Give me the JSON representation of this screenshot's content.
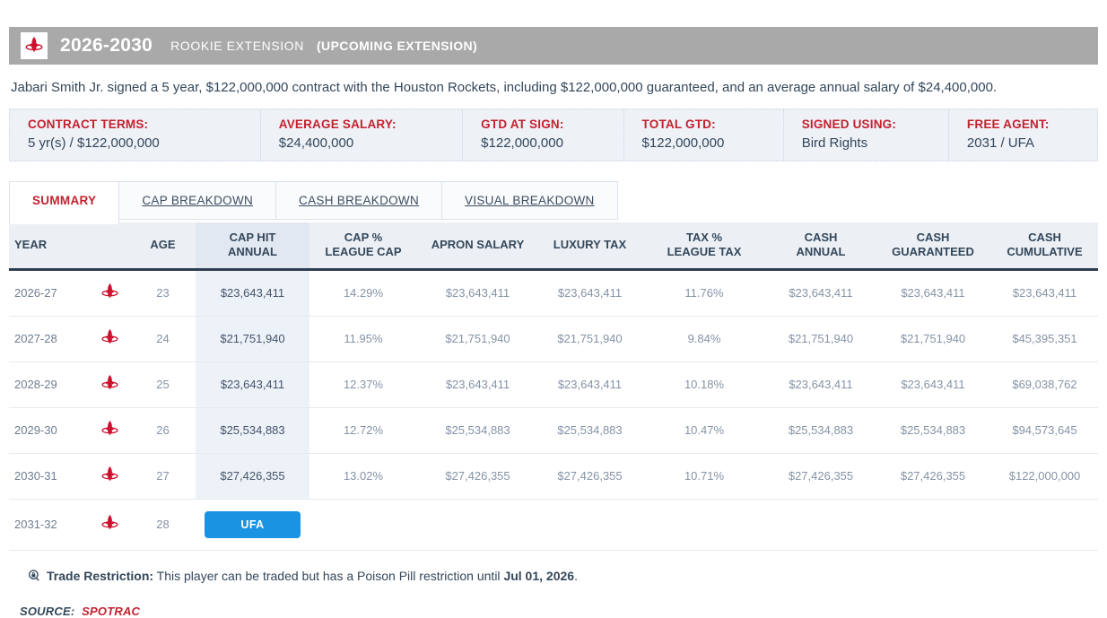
{
  "header": {
    "years": "2026-2030",
    "contract_type": "ROOKIE EXTENSION",
    "status": "(UPCOMING EXTENSION)",
    "team_logo_icon": "rockets-logo-icon"
  },
  "summary_sentence": "Jabari Smith Jr. signed a 5 year, $122,000,000 contract with the Houston Rockets, including $122,000,000 guaranteed, and an average annual salary of $24,400,000.",
  "terms": [
    {
      "label": "CONTRACT TERMS:",
      "value": "5 yr(s) / $122,000,000"
    },
    {
      "label": "AVERAGE SALARY:",
      "value": "$24,400,000"
    },
    {
      "label": "GTD AT SIGN:",
      "value": "$122,000,000"
    },
    {
      "label": "TOTAL GTD:",
      "value": "$122,000,000"
    },
    {
      "label": "SIGNED USING:",
      "value": "Bird Rights"
    },
    {
      "label": "FREE AGENT:",
      "value": "2031 / UFA"
    }
  ],
  "tabs": [
    {
      "label": "SUMMARY",
      "active": true
    },
    {
      "label": "CAP BREAKDOWN",
      "active": false
    },
    {
      "label": "CASH BREAKDOWN",
      "active": false
    },
    {
      "label": "VISUAL BREAKDOWN",
      "active": false
    }
  ],
  "table": {
    "columns": [
      "YEAR",
      "",
      "AGE",
      "CAP HIT\nANNUAL",
      "CAP %\nLEAGUE CAP",
      "APRON SALARY",
      "LUXURY TAX",
      "TAX %\nLEAGUE TAX",
      "CASH\nANNUAL",
      "CASH\nGUARANTEED",
      "CASH\nCUMULATIVE"
    ],
    "ufa_label": "UFA",
    "rows": [
      {
        "year": "2026-27",
        "age": "23",
        "cap_hit": "$23,643,411",
        "cap_pct": "14.29%",
        "apron": "$23,643,411",
        "luxury": "$23,643,411",
        "tax_pct": "11.76%",
        "cash_annual": "$23,643,411",
        "cash_gtd": "$23,643,411",
        "cash_cum": "$23,643,411"
      },
      {
        "year": "2027-28",
        "age": "24",
        "cap_hit": "$21,751,940",
        "cap_pct": "11.95%",
        "apron": "$21,751,940",
        "luxury": "$21,751,940",
        "tax_pct": "9.84%",
        "cash_annual": "$21,751,940",
        "cash_gtd": "$21,751,940",
        "cash_cum": "$45,395,351"
      },
      {
        "year": "2028-29",
        "age": "25",
        "cap_hit": "$23,643,411",
        "cap_pct": "12.37%",
        "apron": "$23,643,411",
        "luxury": "$23,643,411",
        "tax_pct": "10.18%",
        "cash_annual": "$23,643,411",
        "cash_gtd": "$23,643,411",
        "cash_cum": "$69,038,762"
      },
      {
        "year": "2029-30",
        "age": "26",
        "cap_hit": "$25,534,883",
        "cap_pct": "12.72%",
        "apron": "$25,534,883",
        "luxury": "$25,534,883",
        "tax_pct": "10.47%",
        "cash_annual": "$25,534,883",
        "cash_gtd": "$25,534,883",
        "cash_cum": "$94,573,645"
      },
      {
        "year": "2030-31",
        "age": "27",
        "cap_hit": "$27,426,355",
        "cap_pct": "13.02%",
        "apron": "$27,426,355",
        "luxury": "$27,426,355",
        "tax_pct": "10.71%",
        "cash_annual": "$27,426,355",
        "cash_gtd": "$27,426,355",
        "cash_cum": "$122,000,000"
      },
      {
        "year": "2031-32",
        "age": "28",
        "ufa": true
      }
    ]
  },
  "footnote": {
    "icon": "trade-restriction-lock-icon",
    "label": "Trade Restriction:",
    "text": " This player can be traded but has a Poison Pill restriction until ",
    "date": "Jul 01, 2026",
    "suffix": "."
  },
  "source": {
    "label": "SOURCE:",
    "value": "SPOTRAC"
  },
  "colors": {
    "accent_red": "#c3212f",
    "rockets_red": "#ce0e2d",
    "title_bar_gray": "#a9a9a9",
    "ufa_blue": "#1b93e3",
    "header_border_dark": "#2e3d4f",
    "panel_bg": "#eef1f6",
    "cap_hit_highlight": "#edf1f8",
    "text_dark": "#33475b",
    "text_muted": "#8593a6"
  }
}
